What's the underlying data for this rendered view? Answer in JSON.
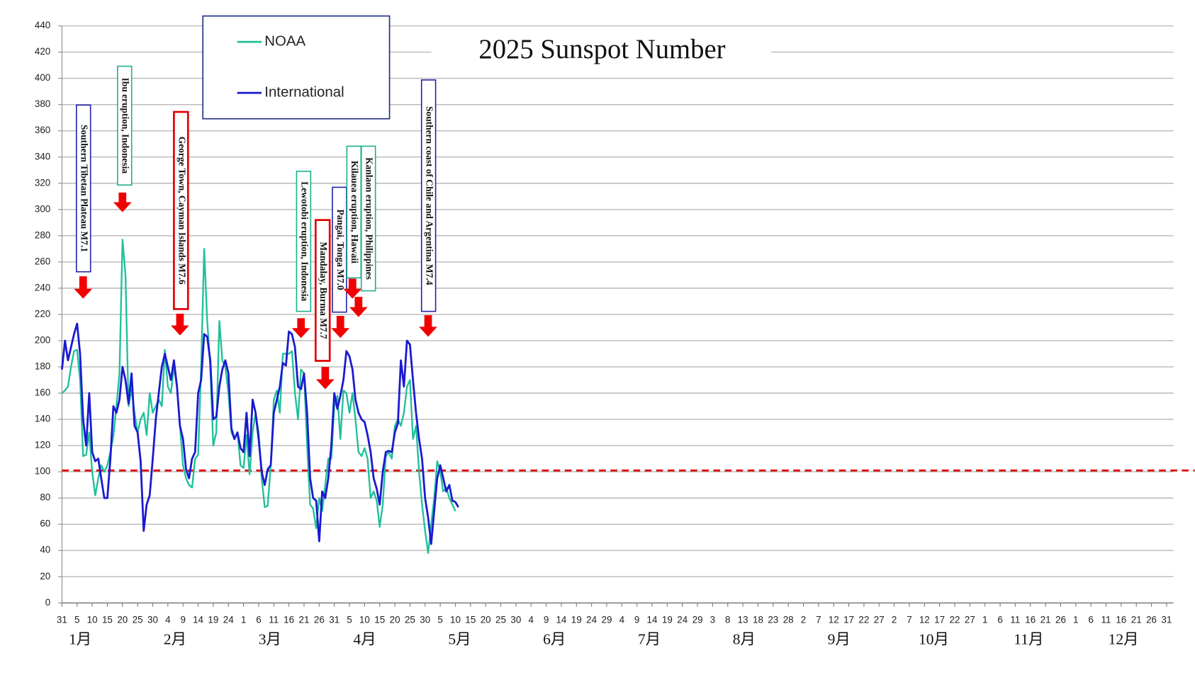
{
  "chart_data": {
    "type": "line",
    "title": "2025 Sunspot Number",
    "x": [
      0,
      1,
      2,
      3,
      4,
      5,
      6,
      7,
      8,
      9,
      10,
      11,
      12,
      13,
      14,
      15,
      16,
      17,
      18,
      19,
      20,
      21,
      22,
      23,
      24,
      25,
      26,
      27,
      28,
      29,
      30,
      31,
      32,
      33,
      34,
      35,
      36,
      37,
      38,
      39,
      40,
      41,
      42,
      43,
      44,
      45,
      46,
      47,
      48,
      49,
      50,
      51,
      52,
      53,
      54,
      55,
      56,
      57,
      58,
      59,
      60,
      61,
      62,
      63,
      64,
      65,
      66,
      67,
      68,
      69,
      70,
      71,
      72,
      73,
      74,
      75,
      76,
      77,
      78,
      79,
      80,
      81,
      82,
      83,
      84,
      85,
      86,
      87,
      88,
      89,
      90,
      91,
      92,
      93,
      94,
      95,
      96,
      97,
      98,
      99,
      100,
      101,
      102,
      103,
      104,
      105,
      106,
      107,
      108,
      109,
      110,
      111,
      112,
      113,
      114,
      115,
      116,
      117,
      118,
      119,
      120,
      121,
      122,
      123,
      124,
      125,
      126,
      127,
      128,
      129,
      130,
      131
    ],
    "series": [
      {
        "name": "NOAA",
        "color": "#20c09a",
        "values": [
          160,
          162,
          165,
          180,
          192,
          193,
          170,
          112,
          113,
          130,
          100,
          82,
          95,
          105,
          100,
          105,
          115,
          127,
          150,
          175,
          277,
          250,
          150,
          163,
          145,
          130,
          140,
          145,
          128,
          160,
          145,
          150,
          155,
          150,
          193,
          165,
          160,
          180,
          165,
          135,
          105,
          95,
          90,
          88,
          110,
          113,
          180,
          270,
          215,
          180,
          120,
          130,
          215,
          185,
          180,
          160,
          130,
          125,
          130,
          105,
          103,
          128,
          98,
          130,
          145,
          130,
          95,
          73,
          74,
          105,
          155,
          162,
          145,
          190,
          190,
          190,
          192,
          160,
          140,
          178,
          175,
          120,
          75,
          72,
          57,
          80,
          70,
          90,
          110,
          110,
          150,
          158,
          125,
          162,
          160,
          145,
          160,
          140,
          115,
          112,
          118,
          110,
          80,
          85,
          78,
          58,
          75,
          112,
          115,
          110,
          135,
          140,
          135,
          145,
          165,
          170,
          125,
          135,
          100,
          75,
          55,
          38,
          60,
          80,
          108,
          100,
          85,
          88,
          80,
          75,
          70,
          null
        ]
      },
      {
        "name": "International",
        "color": "#1a1ad0",
        "values": [
          178,
          200,
          185,
          195,
          205,
          213,
          190,
          140,
          120,
          160,
          115,
          108,
          110,
          95,
          80,
          80,
          110,
          150,
          145,
          155,
          180,
          170,
          152,
          175,
          135,
          130,
          108,
          55,
          75,
          82,
          110,
          140,
          160,
          180,
          190,
          180,
          170,
          185,
          165,
          135,
          125,
          102,
          95,
          110,
          115,
          160,
          170,
          205,
          203,
          185,
          140,
          142,
          165,
          178,
          185,
          175,
          133,
          125,
          130,
          118,
          115,
          145,
          112,
          155,
          145,
          125,
          100,
          90,
          102,
          105,
          145,
          155,
          165,
          183,
          181,
          207,
          205,
          195,
          165,
          163,
          175,
          145,
          95,
          80,
          78,
          47,
          85,
          80,
          95,
          120,
          160,
          148,
          158,
          170,
          192,
          188,
          178,
          155,
          145,
          140,
          138,
          128,
          115,
          95,
          87,
          75,
          100,
          115,
          116,
          115,
          130,
          137,
          185,
          165,
          200,
          197,
          170,
          145,
          125,
          110,
          80,
          65,
          45,
          70,
          95,
          105,
          95,
          85,
          90,
          78,
          77,
          73
        ]
      }
    ],
    "xlim": [
      0,
      365
    ],
    "ylim": [
      0,
      440
    ],
    "yticks": [
      0,
      20,
      40,
      60,
      80,
      100,
      120,
      140,
      160,
      180,
      200,
      220,
      240,
      260,
      280,
      300,
      320,
      340,
      360,
      380,
      400,
      420,
      440
    ],
    "xticks": [
      {
        "value": 0,
        "label": "31"
      },
      {
        "value": 5,
        "label": "5"
      },
      {
        "value": 10,
        "label": "10"
      },
      {
        "value": 15,
        "label": "15"
      },
      {
        "value": 20,
        "label": "20"
      },
      {
        "value": 25,
        "label": "25"
      },
      {
        "value": 30,
        "label": "30"
      },
      {
        "value": 35,
        "label": "4"
      },
      {
        "value": 40,
        "label": "9"
      },
      {
        "value": 45,
        "label": "14"
      },
      {
        "value": 50,
        "label": "19"
      },
      {
        "value": 55,
        "label": "24"
      },
      {
        "value": 60,
        "label": "1"
      },
      {
        "value": 65,
        "label": "6"
      },
      {
        "value": 70,
        "label": "11"
      },
      {
        "value": 75,
        "label": "16"
      },
      {
        "value": 80,
        "label": "21"
      },
      {
        "value": 85,
        "label": "26"
      },
      {
        "value": 90,
        "label": "31"
      },
      {
        "value": 95,
        "label": "5"
      },
      {
        "value": 100,
        "label": "10"
      },
      {
        "value": 105,
        "label": "15"
      },
      {
        "value": 110,
        "label": "20"
      },
      {
        "value": 115,
        "label": "25"
      },
      {
        "value": 120,
        "label": "30"
      },
      {
        "value": 125,
        "label": "5"
      },
      {
        "value": 130,
        "label": "10"
      },
      {
        "value": 135,
        "label": "15"
      },
      {
        "value": 140,
        "label": "20"
      },
      {
        "value": 145,
        "label": "25"
      },
      {
        "value": 150,
        "label": "30"
      },
      {
        "value": 155,
        "label": "4"
      },
      {
        "value": 160,
        "label": "9"
      },
      {
        "value": 165,
        "label": "14"
      },
      {
        "value": 170,
        "label": "19"
      },
      {
        "value": 175,
        "label": "24"
      },
      {
        "value": 180,
        "label": "29"
      },
      {
        "value": 185,
        "label": "4"
      },
      {
        "value": 190,
        "label": "9"
      },
      {
        "value": 195,
        "label": "14"
      },
      {
        "value": 200,
        "label": "19"
      },
      {
        "value": 205,
        "label": "24"
      },
      {
        "value": 210,
        "label": "29"
      },
      {
        "value": 215,
        "label": "3"
      },
      {
        "value": 220,
        "label": "8"
      },
      {
        "value": 225,
        "label": "13"
      },
      {
        "value": 230,
        "label": "18"
      },
      {
        "value": 235,
        "label": "23"
      },
      {
        "value": 240,
        "label": "28"
      },
      {
        "value": 245,
        "label": "2"
      },
      {
        "value": 250,
        "label": "7"
      },
      {
        "value": 255,
        "label": "12"
      },
      {
        "value": 260,
        "label": "17"
      },
      {
        "value": 265,
        "label": "22"
      },
      {
        "value": 270,
        "label": "27"
      },
      {
        "value": 275,
        "label": "2"
      },
      {
        "value": 280,
        "label": "7"
      },
      {
        "value": 285,
        "label": "12"
      },
      {
        "value": 290,
        "label": "17"
      },
      {
        "value": 295,
        "label": "22"
      },
      {
        "value": 300,
        "label": "27"
      },
      {
        "value": 305,
        "label": "1"
      },
      {
        "value": 310,
        "label": "6"
      },
      {
        "value": 315,
        "label": "11"
      },
      {
        "value": 320,
        "label": "16"
      },
      {
        "value": 325,
        "label": "21"
      },
      {
        "value": 330,
        "label": "26"
      },
      {
        "value": 335,
        "label": "1"
      },
      {
        "value": 340,
        "label": "6"
      },
      {
        "value": 345,
        "label": "11"
      },
      {
        "value": 350,
        "label": "16"
      },
      {
        "value": 355,
        "label": "21"
      },
      {
        "value": 360,
        "label": "26"
      },
      {
        "value": 365,
        "label": "31"
      }
    ],
    "x_groups": [
      "1月",
      "2月",
      "3月",
      "4月",
      "5月",
      "6月",
      "7月",
      "8月",
      "9月",
      "10月",
      "11月",
      "12月"
    ],
    "grid": true,
    "reference_line": 101,
    "reference_color": "#e00000",
    "annotations": [
      {
        "text": "Southern Tibetan Plateau M7.1",
        "x": 7,
        "y": 232,
        "color": "#2424a8"
      },
      {
        "text": "Ibu eruption, Indonesia",
        "x": 20,
        "y": 298,
        "color": "#20b090"
      },
      {
        "text": "George Town, Cayman Islands M7.6",
        "x": 39,
        "y": 204,
        "color": "#e00000"
      },
      {
        "text": "Lewotobi eruption, Indonesia",
        "x": 79,
        "y": 202,
        "color": "#20b090"
      },
      {
        "text": "Mandalay, Burma M7.7",
        "x": 87,
        "y": 163,
        "color": "#e00000"
      },
      {
        "text": "Pangai, Tonga M7.0",
        "x": 92,
        "y": 202,
        "color": "#2424a8"
      },
      {
        "text": "Kilauea eruption, Hawaii",
        "x": 96,
        "y": 232,
        "color": "#20b090"
      },
      {
        "text": "Kanlaon eruption, Philippines",
        "x": 98,
        "y": 218,
        "color": "#20b090"
      },
      {
        "text": "Southern coast of Chile and Argentina M7.4",
        "x": 121,
        "y": 203,
        "color": "#2424a8"
      }
    ]
  }
}
